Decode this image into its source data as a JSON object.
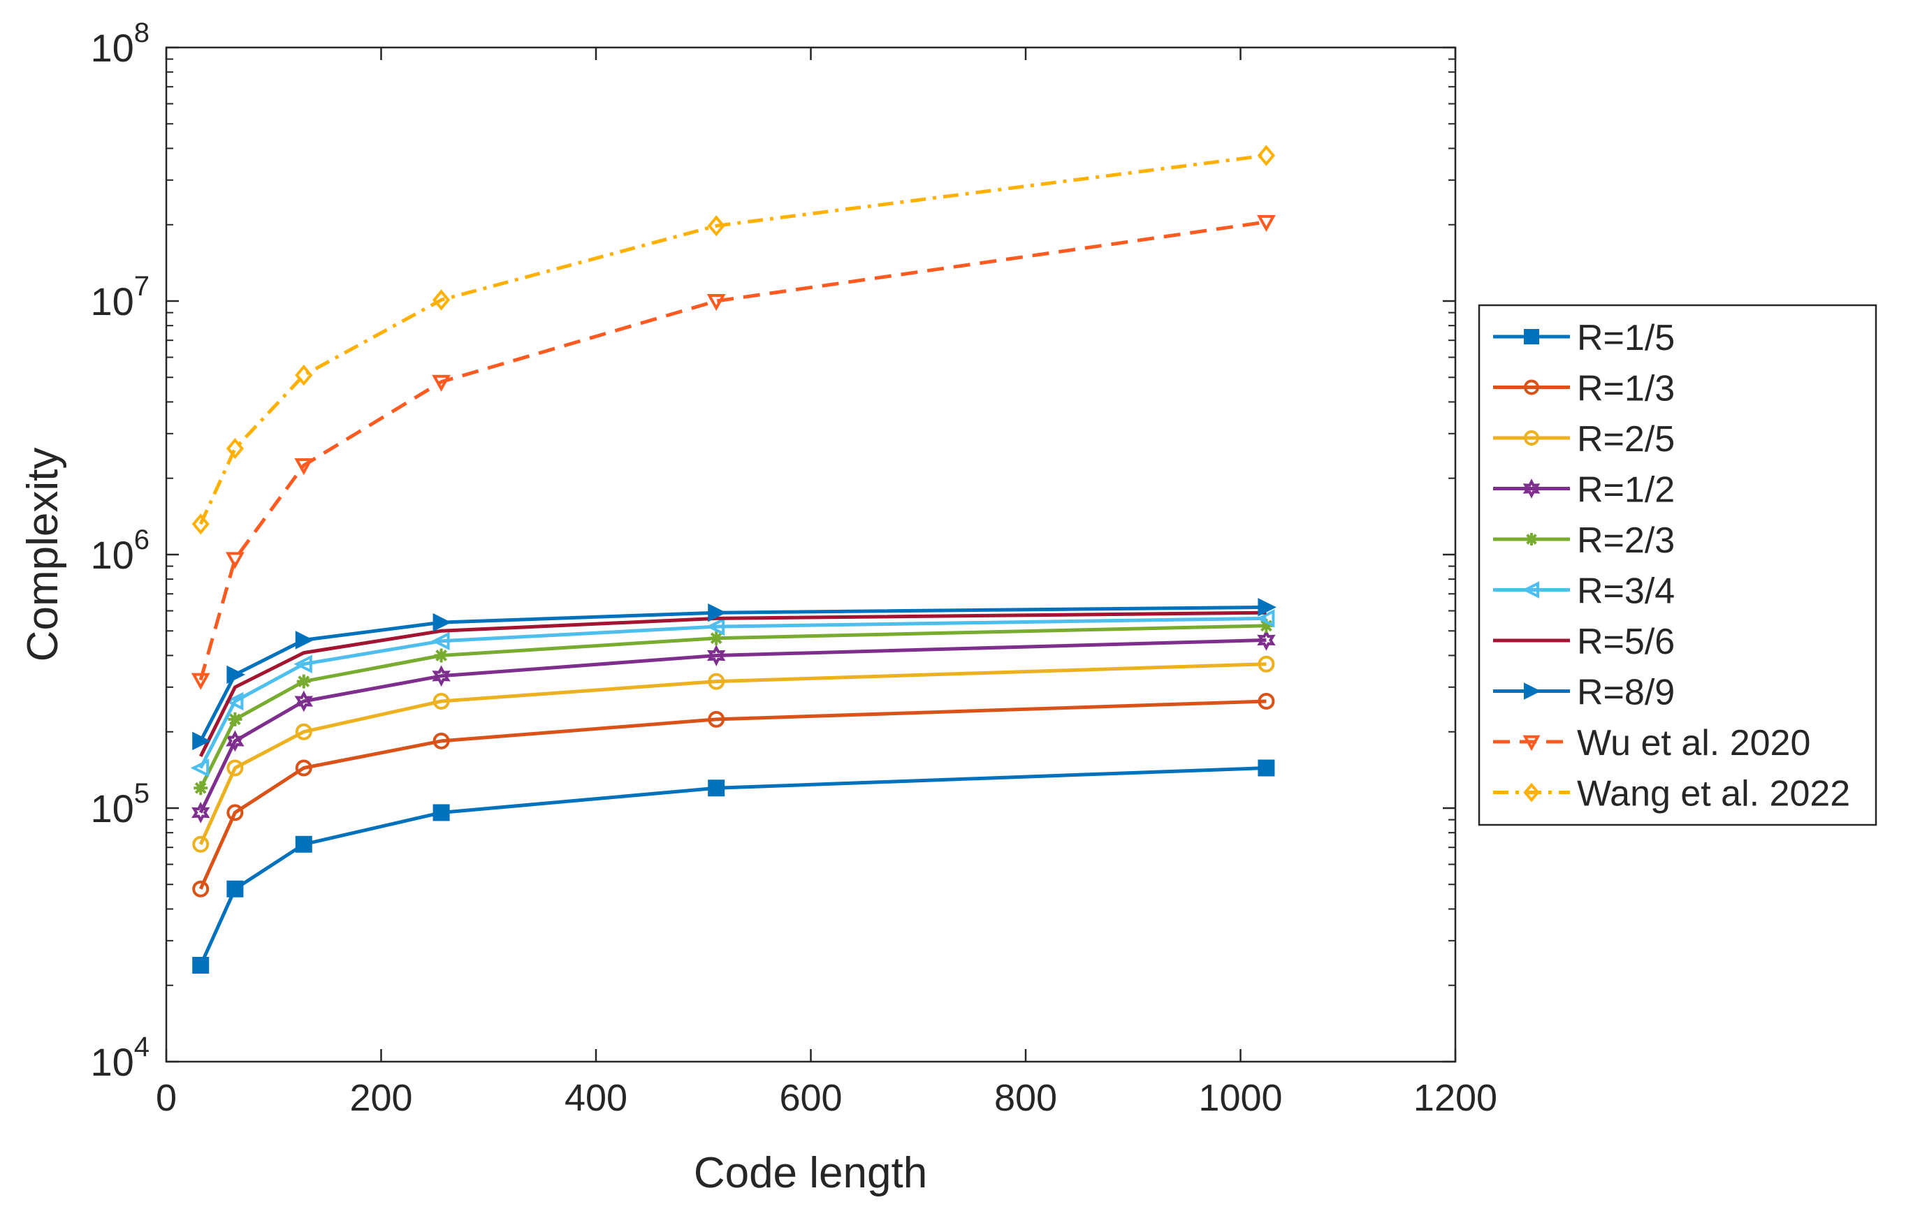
{
  "chart_data": {
    "type": "line",
    "title": "",
    "xlabel": "Code length",
    "ylabel": "Complexity",
    "xlim": [
      0,
      1200
    ],
    "ylim": [
      10000,
      100000000
    ],
    "yscale": "log",
    "x_ticks": [
      0,
      200,
      400,
      600,
      800,
      1000,
      1200
    ],
    "x_tick_labels": [
      "0",
      "200",
      "400",
      "600",
      "800",
      "1000",
      "1200"
    ],
    "y_ticks": [
      10000,
      100000,
      1000000,
      10000000,
      100000000
    ],
    "y_tick_labels": [
      {
        "base": "10",
        "exp": "4"
      },
      {
        "base": "10",
        "exp": "5"
      },
      {
        "base": "10",
        "exp": "6"
      },
      {
        "base": "10",
        "exp": "7"
      },
      {
        "base": "10",
        "exp": "8"
      }
    ],
    "grid": false,
    "legend_position": "outside-right",
    "x": [
      32,
      64,
      128,
      256,
      512,
      1024
    ],
    "series": [
      {
        "name": "R=1/5",
        "color": "#0072BD",
        "dash": "solid",
        "marker": "square",
        "values": [
          24000,
          48000,
          72000,
          96000,
          120000,
          144000
        ]
      },
      {
        "name": "R=1/3",
        "color": "#D95319",
        "dash": "solid",
        "marker": "circle",
        "values": [
          48000,
          96000,
          144000,
          184000,
          224000,
          264000
        ]
      },
      {
        "name": "R=2/5",
        "color": "#EDB120",
        "dash": "solid",
        "marker": "circle",
        "values": [
          72000,
          144000,
          200000,
          264000,
          316000,
          370000
        ]
      },
      {
        "name": "R=1/2",
        "color": "#7E2F8E",
        "dash": "solid",
        "marker": "hexagram",
        "values": [
          96000,
          184000,
          264000,
          332000,
          400000,
          460000
        ]
      },
      {
        "name": "R=2/3",
        "color": "#77AC30",
        "dash": "solid",
        "marker": "asterisk",
        "values": [
          120000,
          224000,
          316000,
          400000,
          468000,
          524000
        ]
      },
      {
        "name": "R=3/4",
        "color": "#4DBEEE",
        "dash": "solid",
        "marker": "triangle-left",
        "values": [
          144000,
          264000,
          370000,
          456000,
          520000,
          560000
        ]
      },
      {
        "name": "R=5/6",
        "color": "#A2142F",
        "dash": "solid",
        "marker": "none",
        "values": [
          160000,
          300000,
          410000,
          500000,
          560000,
          590000
        ]
      },
      {
        "name": "R=8/9",
        "color": "#0072BD",
        "dash": "solid",
        "marker": "triangle-right",
        "values": [
          184000,
          336000,
          460000,
          540000,
          590000,
          620000
        ]
      },
      {
        "name": "Wu et al. 2020",
        "color": "#FF5A1F",
        "dash": "dashed",
        "marker": "triangle-down",
        "values": [
          320000,
          960000,
          2250000,
          4800000,
          10000000,
          20500000
        ]
      },
      {
        "name": "Wang et al. 2022",
        "color": "#FFB000",
        "dash": "dashdot",
        "marker": "diamond",
        "values": [
          1320000,
          2620000,
          5100000,
          10100000,
          19800000,
          37500000
        ]
      }
    ]
  }
}
